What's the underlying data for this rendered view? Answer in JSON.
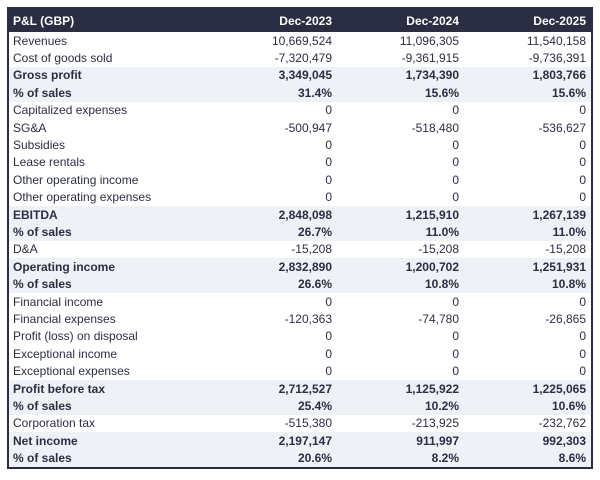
{
  "table": {
    "title": "P&L (GBP)",
    "headers": [
      "P&L (GBP)",
      "Dec-2023",
      "Dec-2024",
      "Dec-2025"
    ],
    "rows": [
      {
        "label": "Revenues",
        "values": [
          "10,669,524",
          "11,096,305",
          "11,540,158"
        ],
        "emphasis": false
      },
      {
        "label": "Cost of goods sold",
        "values": [
          "-7,320,479",
          "-9,361,915",
          "-9,736,391"
        ],
        "emphasis": false
      },
      {
        "label": "Gross profit",
        "values": [
          "3,349,045",
          "1,734,390",
          "1,803,766"
        ],
        "emphasis": true
      },
      {
        "label": "% of sales",
        "values": [
          "31.4%",
          "15.6%",
          "15.6%"
        ],
        "emphasis": true
      },
      {
        "label": "Capitalized expenses",
        "values": [
          "0",
          "0",
          "0"
        ],
        "emphasis": false
      },
      {
        "label": "SG&A",
        "values": [
          "-500,947",
          "-518,480",
          "-536,627"
        ],
        "emphasis": false
      },
      {
        "label": "Subsidies",
        "values": [
          "0",
          "0",
          "0"
        ],
        "emphasis": false
      },
      {
        "label": "Lease rentals",
        "values": [
          "0",
          "0",
          "0"
        ],
        "emphasis": false
      },
      {
        "label": "Other operating income",
        "values": [
          "0",
          "0",
          "0"
        ],
        "emphasis": false
      },
      {
        "label": "Other operating expenses",
        "values": [
          "0",
          "0",
          "0"
        ],
        "emphasis": false
      },
      {
        "label": "EBITDA",
        "values": [
          "2,848,098",
          "1,215,910",
          "1,267,139"
        ],
        "emphasis": true
      },
      {
        "label": "% of sales",
        "values": [
          "26.7%",
          "11.0%",
          "11.0%"
        ],
        "emphasis": true
      },
      {
        "label": "D&A",
        "values": [
          "-15,208",
          "-15,208",
          "-15,208"
        ],
        "emphasis": false
      },
      {
        "label": "Operating income",
        "values": [
          "2,832,890",
          "1,200,702",
          "1,251,931"
        ],
        "emphasis": true
      },
      {
        "label": "% of sales",
        "values": [
          "26.6%",
          "10.8%",
          "10.8%"
        ],
        "emphasis": true
      },
      {
        "label": "Financial income",
        "values": [
          "0",
          "0",
          "0"
        ],
        "emphasis": false
      },
      {
        "label": "Financial expenses",
        "values": [
          "-120,363",
          "-74,780",
          "-26,865"
        ],
        "emphasis": false
      },
      {
        "label": "Profit (loss) on disposal",
        "values": [
          "0",
          "0",
          "0"
        ],
        "emphasis": false
      },
      {
        "label": "Exceptional income",
        "values": [
          "0",
          "0",
          "0"
        ],
        "emphasis": false
      },
      {
        "label": "Exceptional expenses",
        "values": [
          "0",
          "0",
          "0"
        ],
        "emphasis": false
      },
      {
        "label": "Profit before tax",
        "values": [
          "2,712,527",
          "1,125,922",
          "1,225,065"
        ],
        "emphasis": true
      },
      {
        "label": "% of sales",
        "values": [
          "25.4%",
          "10.2%",
          "10.6%"
        ],
        "emphasis": true
      },
      {
        "label": "Corporation tax",
        "values": [
          "-515,380",
          "-213,925",
          "-232,762"
        ],
        "emphasis": false
      },
      {
        "label": "Net income",
        "values": [
          "2,197,147",
          "911,997",
          "992,303"
        ],
        "emphasis": true
      },
      {
        "label": "% of sales",
        "values": [
          "20.6%",
          "8.2%",
          "8.6%"
        ],
        "emphasis": true
      }
    ],
    "colors": {
      "header_bg": "#2b2e43",
      "header_text": "#ffffff",
      "row_text": "#2b2e43",
      "emphasis_row_bg": "#eef1f6",
      "border": "#2b2e43"
    }
  },
  "chart_data": {
    "type": "table",
    "title": "P&L (GBP)",
    "columns": [
      "P&L (GBP)",
      "Dec-2023",
      "Dec-2024",
      "Dec-2025"
    ],
    "rows": [
      [
        "Revenues",
        10669524,
        11096305,
        11540158
      ],
      [
        "Cost of goods sold",
        -7320479,
        -9361915,
        -9736391
      ],
      [
        "Gross profit",
        3349045,
        1734390,
        1803766
      ],
      [
        "% of sales",
        "31.4%",
        "15.6%",
        "15.6%"
      ],
      [
        "Capitalized expenses",
        0,
        0,
        0
      ],
      [
        "SG&A",
        -500947,
        -518480,
        -536627
      ],
      [
        "Subsidies",
        0,
        0,
        0
      ],
      [
        "Lease rentals",
        0,
        0,
        0
      ],
      [
        "Other operating income",
        0,
        0,
        0
      ],
      [
        "Other operating expenses",
        0,
        0,
        0
      ],
      [
        "EBITDA",
        2848098,
        1215910,
        1267139
      ],
      [
        "% of sales",
        "26.7%",
        "11.0%",
        "11.0%"
      ],
      [
        "D&A",
        -15208,
        -15208,
        -15208
      ],
      [
        "Operating income",
        2832890,
        1200702,
        1251931
      ],
      [
        "% of sales",
        "26.6%",
        "10.8%",
        "10.8%"
      ],
      [
        "Financial income",
        0,
        0,
        0
      ],
      [
        "Financial expenses",
        -120363,
        -74780,
        -26865
      ],
      [
        "Profit (loss) on disposal",
        0,
        0,
        0
      ],
      [
        "Exceptional income",
        0,
        0,
        0
      ],
      [
        "Exceptional expenses",
        0,
        0,
        0
      ],
      [
        "Profit before tax",
        2712527,
        1125922,
        1225065
      ],
      [
        "% of sales",
        "25.4%",
        "10.2%",
        "10.6%"
      ],
      [
        "Corporation tax",
        -515380,
        -213925,
        -232762
      ],
      [
        "Net income",
        2197147,
        911997,
        992303
      ],
      [
        "% of sales",
        "20.6%",
        "8.2%",
        "8.6%"
      ]
    ]
  }
}
